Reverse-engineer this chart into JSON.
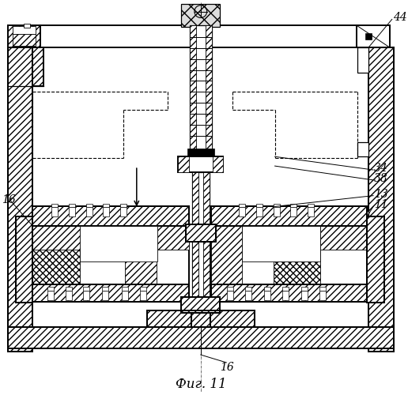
{
  "title": "Фиг. 11",
  "bg_color": "#ffffff",
  "line_color": "#000000",
  "hatch_density": 4
}
